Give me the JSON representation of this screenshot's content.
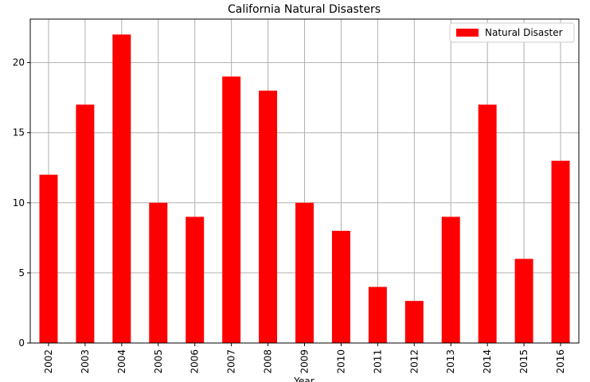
{
  "chart_data": {
    "type": "bar",
    "title": "California Natural Disasters",
    "x_label": "Year",
    "categories": [
      "2002",
      "2003",
      "2004",
      "2005",
      "2006",
      "2007",
      "2008",
      "2009",
      "2010",
      "2011",
      "2012",
      "2013",
      "2014",
      "2015",
      "2016"
    ],
    "series": [
      {
        "name": "Natural Disaster",
        "color": "#ff0000",
        "values": [
          12,
          17,
          22,
          10,
          9,
          19,
          18,
          10,
          8,
          4,
          3,
          9,
          17,
          6,
          13
        ]
      }
    ],
    "ylim": [
      0,
      23.1
    ],
    "yticks": [
      0,
      5,
      10,
      15,
      20
    ],
    "grid": true,
    "legend": "upper right"
  }
}
